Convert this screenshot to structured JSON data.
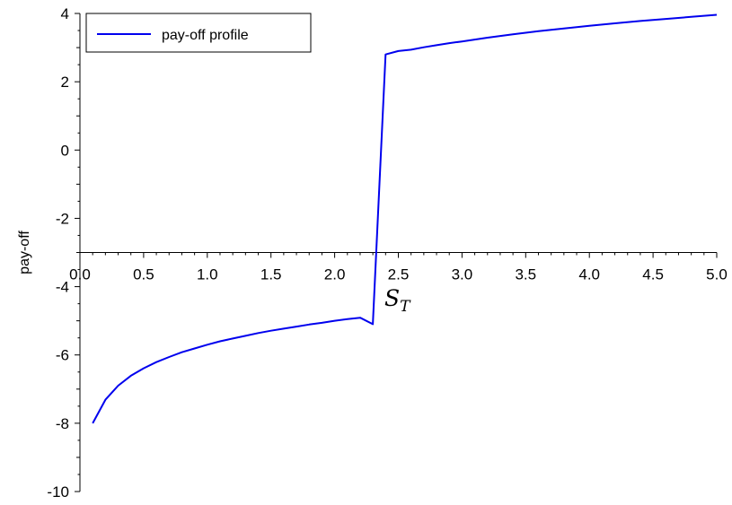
{
  "chart_data": {
    "type": "line",
    "title": "",
    "xlabel": "S",
    "xlabel_subscript": "T",
    "ylabel": "pay-off",
    "xlim": [
      0,
      5
    ],
    "ylim": [
      -10,
      4
    ],
    "x_axis_crosses_y_at": -3,
    "x_ticks": [
      "0.0",
      "0.5",
      "1.0",
      "1.5",
      "2.0",
      "2.5",
      "3.0",
      "3.5",
      "4.0",
      "4.5",
      "5.0"
    ],
    "x_tick_values": [
      0,
      0.5,
      1,
      1.5,
      2,
      2.5,
      3,
      3.5,
      4,
      4.5,
      5
    ],
    "y_ticks": [
      "4",
      "2",
      "0",
      "-2",
      "-4",
      "-6",
      "-8",
      "-10"
    ],
    "y_tick_values": [
      4,
      2,
      0,
      -2,
      -4,
      -6,
      -8,
      -10
    ],
    "grid": false,
    "legend_position": "top-left",
    "series": [
      {
        "name": "pay-off profile",
        "color": "#0000ee",
        "x": [
          0.1,
          0.2,
          0.3,
          0.4,
          0.5,
          0.6,
          0.7,
          0.8,
          0.9,
          1.0,
          1.1,
          1.2,
          1.3,
          1.4,
          1.5,
          1.6,
          1.7,
          1.8,
          1.9,
          2.0,
          2.1,
          2.2,
          2.3,
          2.4,
          2.5,
          2.6,
          2.7,
          2.8,
          2.9,
          3.0,
          3.2,
          3.4,
          3.6,
          3.8,
          4.0,
          4.2,
          4.4,
          4.6,
          4.8,
          5.0
        ],
        "y": [
          -8.0,
          -7.31,
          -6.9,
          -6.61,
          -6.39,
          -6.21,
          -6.06,
          -5.92,
          -5.81,
          -5.7,
          -5.6,
          -5.52,
          -5.44,
          -5.36,
          -5.29,
          -5.23,
          -5.17,
          -5.11,
          -5.06,
          -5.0,
          -4.95,
          -4.91,
          -5.1,
          2.8,
          2.9,
          2.94,
          3.01,
          3.07,
          3.13,
          3.18,
          3.29,
          3.39,
          3.48,
          3.56,
          3.64,
          3.71,
          3.78,
          3.84,
          3.9,
          3.96
        ]
      }
    ]
  }
}
